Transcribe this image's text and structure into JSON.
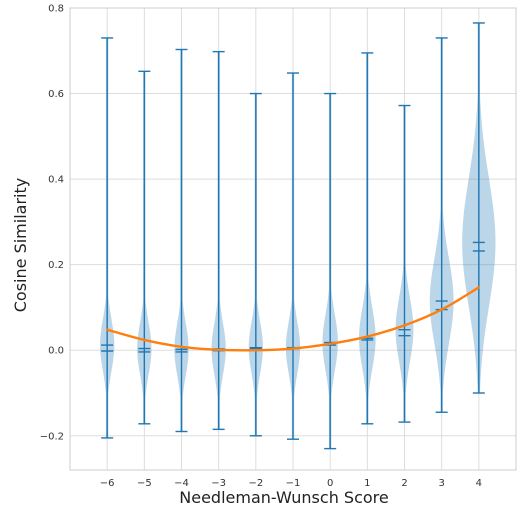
{
  "chart_data": {
    "type": "violin",
    "xlabel": "Needleman-Wunsch Score",
    "ylabel": "Cosine Similarity",
    "x_ticks": [
      "−6",
      "−5",
      "−4",
      "−3",
      "−2",
      "−1",
      "0",
      "1",
      "2",
      "3",
      "4"
    ],
    "y_ticks": [
      "−0.2",
      "0.0",
      "0.2",
      "0.4",
      "0.6",
      "0.8"
    ],
    "xlim": [
      -7,
      5
    ],
    "ylim": [
      -0.28,
      0.8
    ],
    "grid": true,
    "colors": {
      "violin": "#1f77b4",
      "fit_line": "#ff7f0e",
      "grid": "#dddddd",
      "spine": "#cccccc"
    },
    "violins": [
      {
        "x": -6,
        "min": -0.205,
        "max": 0.73,
        "mean": 0.012,
        "median": -0.002,
        "width": 0.06,
        "spread": 0.06
      },
      {
        "x": -5,
        "min": -0.172,
        "max": 0.652,
        "mean": 0.004,
        "median": -0.004,
        "width": 0.06,
        "spread": 0.06
      },
      {
        "x": -4,
        "min": -0.19,
        "max": 0.703,
        "mean": 0.002,
        "median": -0.004,
        "width": 0.06,
        "spread": 0.06
      },
      {
        "x": -3,
        "min": -0.185,
        "max": 0.698,
        "mean": 0.003,
        "median": -0.001,
        "width": 0.06,
        "spread": 0.06
      },
      {
        "x": -2,
        "min": -0.2,
        "max": 0.6,
        "mean": 0.006,
        "median": 0.004,
        "width": 0.06,
        "spread": 0.06
      },
      {
        "x": -1,
        "min": -0.208,
        "max": 0.648,
        "mean": 0.006,
        "median": 0.004,
        "width": 0.06,
        "spread": 0.06
      },
      {
        "x": 0,
        "min": -0.23,
        "max": 0.6,
        "mean": 0.018,
        "median": 0.012,
        "width": 0.065,
        "spread": 0.065
      },
      {
        "x": 1,
        "min": -0.172,
        "max": 0.695,
        "mean": 0.028,
        "median": 0.024,
        "width": 0.07,
        "spread": 0.07
      },
      {
        "x": 2,
        "min": -0.168,
        "max": 0.572,
        "mean": 0.048,
        "median": 0.034,
        "width": 0.075,
        "spread": 0.075
      },
      {
        "x": 3,
        "min": -0.145,
        "max": 0.73,
        "mean": 0.115,
        "median": 0.095,
        "width": 0.1,
        "spread": 0.1
      },
      {
        "x": 4,
        "min": -0.1,
        "max": 0.765,
        "mean": 0.252,
        "median": 0.232,
        "width": 0.14,
        "spread": 0.15
      }
    ],
    "fit_line": {
      "x": [
        -6,
        -5,
        -4,
        -3,
        -2,
        -1,
        0,
        1,
        2,
        3,
        4
      ],
      "y": [
        0.048,
        0.024,
        0.008,
        0.001,
        0.0,
        0.004,
        0.015,
        0.032,
        0.058,
        0.095,
        0.147
      ]
    }
  }
}
